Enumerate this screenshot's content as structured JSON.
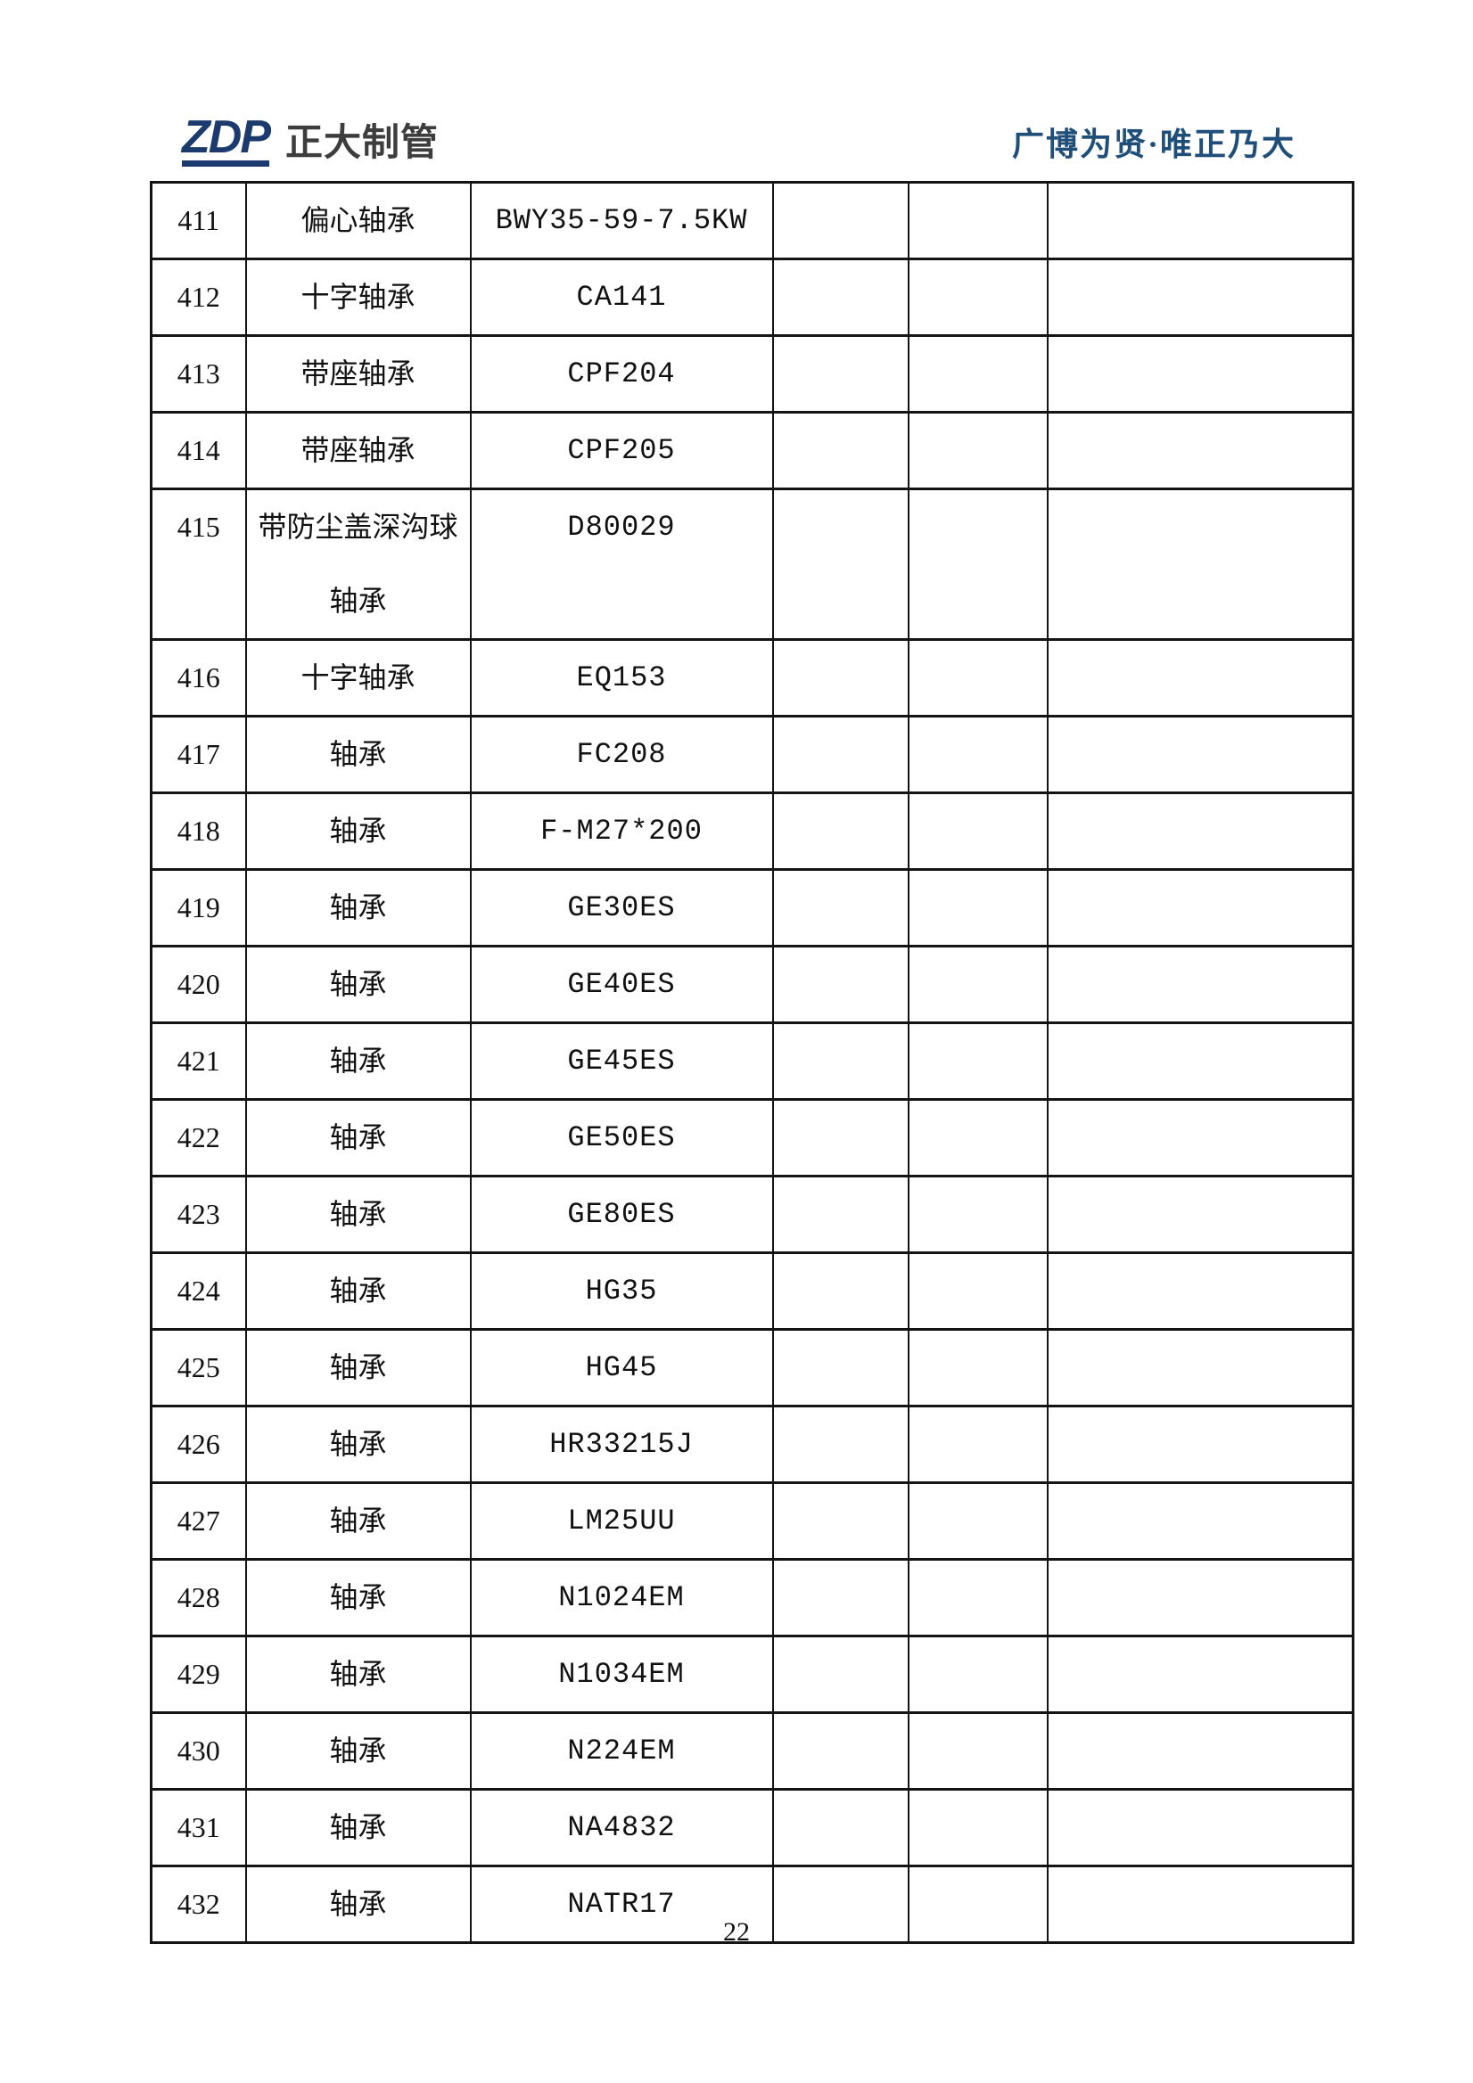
{
  "page": {
    "page_number": "22"
  },
  "header": {
    "logo_text": "ZDP",
    "logo_company_name": "正大制管",
    "slogan": "广博为贤·唯正乃大",
    "logo_color": "#1b3a6d",
    "logo_company_name_color": "#3d3d3d",
    "slogan_color": "#1f4e79"
  },
  "table": {
    "line_color": "#141414",
    "rows": [
      {
        "no": "411",
        "name_lines": [
          "偏心轴承"
        ],
        "model": "BWY35-59-7.5KW",
        "col4": "",
        "col5": "",
        "col6": ""
      },
      {
        "no": "412",
        "name_lines": [
          "十字轴承"
        ],
        "model": "CA141",
        "col4": "",
        "col5": "",
        "col6": ""
      },
      {
        "no": "413",
        "name_lines": [
          "带座轴承"
        ],
        "model": "CPF204",
        "col4": "",
        "col5": "",
        "col6": ""
      },
      {
        "no": "414",
        "name_lines": [
          "带座轴承"
        ],
        "model": "CPF205",
        "col4": "",
        "col5": "",
        "col6": ""
      },
      {
        "no": "415",
        "name_lines": [
          "带防尘盖深沟球",
          "轴承"
        ],
        "model": "D80029",
        "col4": "",
        "col5": "",
        "col6": ""
      },
      {
        "no": "416",
        "name_lines": [
          "十字轴承"
        ],
        "model": "EQ153",
        "col4": "",
        "col5": "",
        "col6": ""
      },
      {
        "no": "417",
        "name_lines": [
          "轴承"
        ],
        "model": "FC208",
        "col4": "",
        "col5": "",
        "col6": ""
      },
      {
        "no": "418",
        "name_lines": [
          "轴承"
        ],
        "model": "F-M27*200",
        "col4": "",
        "col5": "",
        "col6": ""
      },
      {
        "no": "419",
        "name_lines": [
          "轴承"
        ],
        "model": "GE30ES",
        "col4": "",
        "col5": "",
        "col6": ""
      },
      {
        "no": "420",
        "name_lines": [
          "轴承"
        ],
        "model": "GE40ES",
        "col4": "",
        "col5": "",
        "col6": ""
      },
      {
        "no": "421",
        "name_lines": [
          "轴承"
        ],
        "model": "GE45ES",
        "col4": "",
        "col5": "",
        "col6": ""
      },
      {
        "no": "422",
        "name_lines": [
          "轴承"
        ],
        "model": "GE50ES",
        "col4": "",
        "col5": "",
        "col6": ""
      },
      {
        "no": "423",
        "name_lines": [
          "轴承"
        ],
        "model": "GE80ES",
        "col4": "",
        "col5": "",
        "col6": ""
      },
      {
        "no": "424",
        "name_lines": [
          "轴承"
        ],
        "model": "HG35",
        "col4": "",
        "col5": "",
        "col6": ""
      },
      {
        "no": "425",
        "name_lines": [
          "轴承"
        ],
        "model": "HG45",
        "col4": "",
        "col5": "",
        "col6": ""
      },
      {
        "no": "426",
        "name_lines": [
          "轴承"
        ],
        "model": "HR33215J",
        "col4": "",
        "col5": "",
        "col6": ""
      },
      {
        "no": "427",
        "name_lines": [
          "轴承"
        ],
        "model": "LM25UU",
        "col4": "",
        "col5": "",
        "col6": ""
      },
      {
        "no": "428",
        "name_lines": [
          "轴承"
        ],
        "model": "N1024EM",
        "col4": "",
        "col5": "",
        "col6": ""
      },
      {
        "no": "429",
        "name_lines": [
          "轴承"
        ],
        "model": "N1034EM",
        "col4": "",
        "col5": "",
        "col6": ""
      },
      {
        "no": "430",
        "name_lines": [
          "轴承"
        ],
        "model": "N224EM",
        "col4": "",
        "col5": "",
        "col6": ""
      },
      {
        "no": "431",
        "name_lines": [
          "轴承"
        ],
        "model": "NA4832",
        "col4": "",
        "col5": "",
        "col6": ""
      },
      {
        "no": "432",
        "name_lines": [
          "轴承"
        ],
        "model": "NATR17",
        "col4": "",
        "col5": "",
        "col6": ""
      }
    ]
  }
}
